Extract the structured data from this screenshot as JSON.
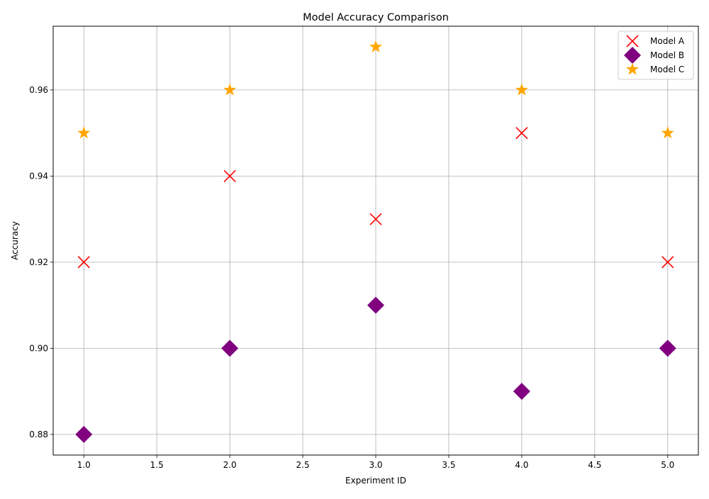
{
  "chart_data": {
    "type": "scatter",
    "title": "Model Accuracy Comparison",
    "xlabel": "Experiment ID",
    "ylabel": "Accuracy",
    "xlim": [
      0.79,
      5.21
    ],
    "ylim": [
      0.8752,
      0.9748
    ],
    "xticks": [
      1.0,
      1.5,
      2.0,
      2.5,
      3.0,
      3.5,
      4.0,
      4.5,
      5.0
    ],
    "xtick_labels": [
      "1.0",
      "1.5",
      "2.0",
      "2.5",
      "3.0",
      "3.5",
      "4.0",
      "4.5",
      "5.0"
    ],
    "yticks": [
      0.88,
      0.9,
      0.92,
      0.94,
      0.96
    ],
    "ytick_labels": [
      "0.88",
      "0.90",
      "0.92",
      "0.94",
      "0.96"
    ],
    "grid": true,
    "legend_position": "top-right",
    "series": [
      {
        "name": "Model A",
        "marker": "x",
        "color": "#ff0000",
        "x": [
          1,
          2,
          3,
          4,
          5
        ],
        "y": [
          0.92,
          0.94,
          0.93,
          0.95,
          0.92
        ]
      },
      {
        "name": "Model B",
        "marker": "diamond",
        "color": "#800080",
        "x": [
          1,
          2,
          3,
          4,
          5
        ],
        "y": [
          0.88,
          0.9,
          0.91,
          0.89,
          0.9
        ]
      },
      {
        "name": "Model C",
        "marker": "star",
        "color": "#ffa500",
        "x": [
          1,
          2,
          3,
          4,
          5
        ],
        "y": [
          0.95,
          0.96,
          0.97,
          0.96,
          0.95
        ]
      }
    ]
  }
}
